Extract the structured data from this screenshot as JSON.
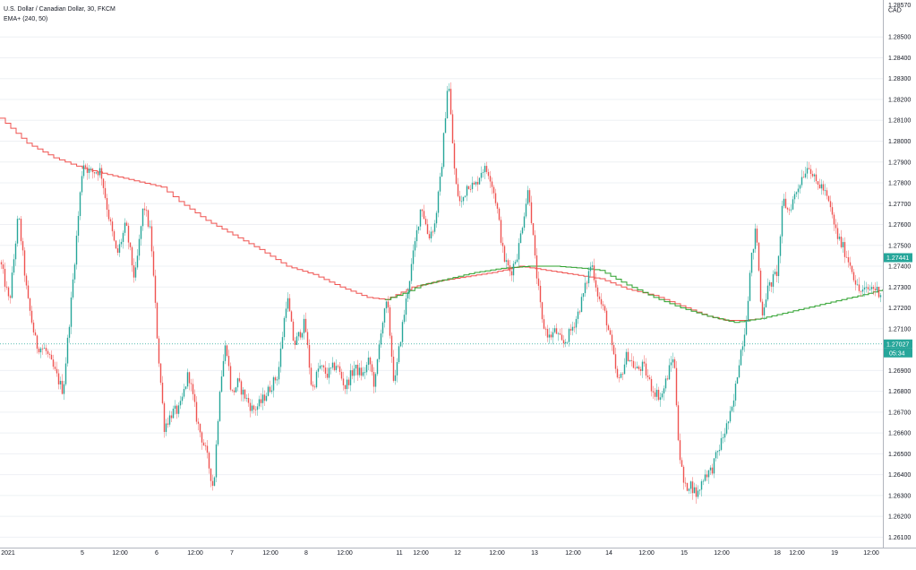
{
  "legend": {
    "title": "U.S. Dollar / Canadian Dollar, 30, FKCM",
    "indicator": "EMA+ (240, 50)"
  },
  "colors": {
    "up": "#26a69a",
    "down": "#ef5350",
    "ema_slow": "#ef5350",
    "ema_fast": "#2ca02c",
    "price_line": "#26a69a",
    "axis_text": "#131722",
    "grid": "#eef0f4"
  },
  "chart_data": {
    "type": "candlestick",
    "title": "U.S. Dollar / Canadian Dollar, 30, FKCM",
    "currency": "CAD",
    "y_axis_top_label": "1.28570",
    "ylim": [
      1.2605,
      1.2866
    ],
    "y_ticks": [
      "1.28500",
      "1.28400",
      "1.28300",
      "1.28200",
      "1.28100",
      "1.28000",
      "1.27900",
      "1.27800",
      "1.27700",
      "1.27600",
      "1.27500",
      "1.27400",
      "1.27300",
      "1.27200",
      "1.27100",
      "1.27000",
      "1.26900",
      "1.26800",
      "1.26700",
      "1.26600",
      "1.26500",
      "1.26400",
      "1.26300",
      "1.26200",
      "1.26100"
    ],
    "x_ticks": [
      "2021",
      "5",
      "12:00",
      "6",
      "12:00",
      "7",
      "12:00",
      "8",
      "12:00",
      "11",
      "12:00",
      "12",
      "12:00",
      "13",
      "12:00",
      "14",
      "12:00",
      "15",
      "12:00",
      "18",
      "12:00",
      "19",
      "12:00"
    ],
    "price_labels": [
      {
        "label": "1.27441",
        "value": 1.27441,
        "color": "#26a69a"
      },
      {
        "label": "1.27027",
        "value": 1.27027,
        "color": "#26a69a",
        "countdown": "05:34"
      }
    ],
    "current_price": 1.27027,
    "anchors": [
      [
        0,
        1.2742
      ],
      [
        10,
        1.2722
      ],
      [
        20,
        1.2765
      ],
      [
        30,
        1.2725
      ],
      [
        40,
        1.2702
      ],
      [
        50,
        1.27
      ],
      [
        60,
        1.269
      ],
      [
        70,
        1.268
      ],
      [
        80,
        1.2728
      ],
      [
        92,
        1.279
      ],
      [
        100,
        1.2785
      ],
      [
        112,
        1.2786
      ],
      [
        120,
        1.2766
      ],
      [
        130,
        1.2745
      ],
      [
        140,
        1.276
      ],
      [
        150,
        1.2733
      ],
      [
        160,
        1.277
      ],
      [
        168,
        1.2755
      ],
      [
        176,
        1.27
      ],
      [
        183,
        1.2663
      ],
      [
        192,
        1.267
      ],
      [
        200,
        1.2671
      ],
      [
        210,
        1.2689
      ],
      [
        220,
        1.2665
      ],
      [
        230,
        1.265
      ],
      [
        238,
        1.2633
      ],
      [
        245,
        1.2682
      ],
      [
        252,
        1.2704
      ],
      [
        258,
        1.2678
      ],
      [
        265,
        1.2684
      ],
      [
        275,
        1.2676
      ],
      [
        282,
        1.2671
      ],
      [
        290,
        1.2674
      ],
      [
        300,
        1.2681
      ],
      [
        310,
        1.2688
      ],
      [
        320,
        1.2726
      ],
      [
        328,
        1.2702
      ],
      [
        340,
        1.2713
      ],
      [
        348,
        1.268
      ],
      [
        356,
        1.2692
      ],
      [
        365,
        1.2688
      ],
      [
        375,
        1.2693
      ],
      [
        385,
        1.2682
      ],
      [
        395,
        1.2691
      ],
      [
        405,
        1.2688
      ],
      [
        412,
        1.2695
      ],
      [
        418,
        1.2682
      ],
      [
        425,
        1.271
      ],
      [
        432,
        1.2723
      ],
      [
        440,
        1.2682
      ],
      [
        446,
        1.2703
      ],
      [
        455,
        1.2729
      ],
      [
        462,
        1.2748
      ],
      [
        470,
        1.277
      ],
      [
        478,
        1.2754
      ],
      [
        485,
        1.276
      ],
      [
        492,
        1.2784
      ],
      [
        500,
        1.2831
      ],
      [
        508,
        1.278
      ],
      [
        514,
        1.2769
      ],
      [
        522,
        1.278
      ],
      [
        530,
        1.2778
      ],
      [
        538,
        1.2787
      ],
      [
        546,
        1.2785
      ],
      [
        554,
        1.277
      ],
      [
        562,
        1.2744
      ],
      [
        570,
        1.2737
      ],
      [
        578,
        1.2747
      ],
      [
        585,
        1.2766
      ],
      [
        590,
        1.2778
      ],
      [
        597,
        1.2743
      ],
      [
        605,
        1.2713
      ],
      [
        613,
        1.2706
      ],
      [
        620,
        1.2709
      ],
      [
        628,
        1.2702
      ],
      [
        636,
        1.2708
      ],
      [
        644,
        1.2716
      ],
      [
        652,
        1.2728
      ],
      [
        660,
        1.2742
      ],
      [
        668,
        1.2725
      ],
      [
        676,
        1.2716
      ],
      [
        684,
        1.2698
      ],
      [
        690,
        1.2683
      ],
      [
        700,
        1.2698
      ],
      [
        710,
        1.269
      ],
      [
        718,
        1.2692
      ],
      [
        728,
        1.2681
      ],
      [
        738,
        1.2677
      ],
      [
        746,
        1.2689
      ],
      [
        752,
        1.2698
      ],
      [
        758,
        1.2651
      ],
      [
        764,
        1.2633
      ],
      [
        770,
        1.2636
      ],
      [
        778,
        1.263
      ],
      [
        786,
        1.264
      ],
      [
        794,
        1.2642
      ],
      [
        802,
        1.2652
      ],
      [
        810,
        1.2662
      ],
      [
        818,
        1.2672
      ],
      [
        825,
        1.2695
      ],
      [
        832,
        1.2711
      ],
      [
        838,
        1.2741
      ],
      [
        844,
        1.2759
      ],
      [
        850,
        1.2716
      ],
      [
        856,
        1.2728
      ],
      [
        862,
        1.2733
      ],
      [
        868,
        1.2738
      ],
      [
        874,
        1.2772
      ],
      [
        880,
        1.2766
      ],
      [
        888,
        1.2775
      ],
      [
        896,
        1.2784
      ],
      [
        903,
        1.2789
      ],
      [
        910,
        1.278
      ],
      [
        918,
        1.2778
      ],
      [
        926,
        1.2769
      ],
      [
        934,
        1.2755
      ],
      [
        942,
        1.2748
      ],
      [
        950,
        1.274
      ],
      [
        958,
        1.2728
      ],
      [
        966,
        1.2728
      ],
      [
        974,
        1.273
      ],
      [
        984,
        1.2727
      ]
    ],
    "ema_slow": [
      [
        0,
        1.2811
      ],
      [
        30,
        1.2799
      ],
      [
        60,
        1.2792
      ],
      [
        92,
        1.2787
      ],
      [
        120,
        1.2784
      ],
      [
        150,
        1.2781
      ],
      [
        180,
        1.2778
      ],
      [
        200,
        1.2771
      ],
      [
        230,
        1.2762
      ],
      [
        260,
        1.2755
      ],
      [
        290,
        1.2748
      ],
      [
        320,
        1.274
      ],
      [
        350,
        1.2736
      ],
      [
        380,
        1.273
      ],
      [
        410,
        1.2725
      ],
      [
        430,
        1.2724
      ],
      [
        460,
        1.273
      ],
      [
        490,
        1.2733
      ],
      [
        520,
        1.2735
      ],
      [
        550,
        1.2737
      ],
      [
        580,
        1.274
      ],
      [
        610,
        1.2738
      ],
      [
        640,
        1.2736
      ],
      [
        670,
        1.2734
      ],
      [
        700,
        1.2729
      ],
      [
        730,
        1.2726
      ],
      [
        760,
        1.2721
      ],
      [
        790,
        1.2716
      ],
      [
        810,
        1.2714
      ],
      [
        830,
        1.2714
      ],
      [
        850,
        1.2715
      ]
    ],
    "ema_fast": [
      [
        430,
        1.2724
      ],
      [
        450,
        1.2727
      ],
      [
        470,
        1.2731
      ],
      [
        500,
        1.2734
      ],
      [
        530,
        1.2737
      ],
      [
        560,
        1.2739
      ],
      [
        590,
        1.274
      ],
      [
        620,
        1.274
      ],
      [
        650,
        1.2739
      ],
      [
        670,
        1.2738
      ],
      [
        700,
        1.2731
      ],
      [
        730,
        1.2725
      ],
      [
        760,
        1.272
      ],
      [
        790,
        1.2716
      ],
      [
        820,
        1.2713
      ],
      [
        850,
        1.2715
      ],
      [
        880,
        1.2718
      ],
      [
        910,
        1.2721
      ],
      [
        940,
        1.2724
      ],
      [
        970,
        1.2727
      ],
      [
        986,
        1.2729
      ]
    ]
  }
}
